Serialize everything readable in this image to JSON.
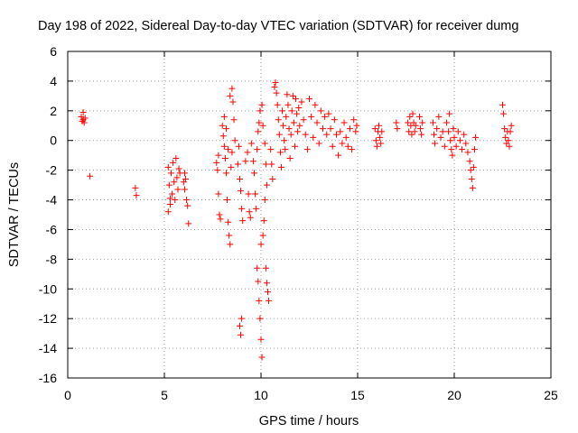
{
  "chart_data": {
    "type": "scatter",
    "title": "Day 198 of 2022, Sidereal Day-to-day VTEC variation (SDTVAR) for receiver dumg",
    "xlabel": "GPS time / hours",
    "ylabel": "SDTVAR / TECUs",
    "xlim": [
      0,
      25
    ],
    "ylim": [
      -16,
      6
    ],
    "xticks": [
      0,
      5,
      10,
      15,
      20,
      25
    ],
    "yticks": [
      -16,
      -14,
      -12,
      -10,
      -8,
      -6,
      -4,
      -2,
      0,
      2,
      4,
      6
    ],
    "grid": true,
    "marker": "+",
    "color": "#ff0000",
    "series": [
      {
        "name": "SDTVAR",
        "points": [
          [
            0.7,
            1.6
          ],
          [
            0.75,
            1.3
          ],
          [
            0.8,
            1.9
          ],
          [
            0.85,
            1.2
          ],
          [
            0.9,
            1.5
          ],
          [
            0.8,
            1.4
          ],
          [
            1.15,
            -2.4
          ],
          [
            3.5,
            -3.2
          ],
          [
            3.55,
            -3.7
          ],
          [
            5.2,
            -1.8
          ],
          [
            5.25,
            -3.0
          ],
          [
            5.3,
            -4.3
          ],
          [
            5.35,
            -2.2
          ],
          [
            5.4,
            -3.6
          ],
          [
            5.45,
            -1.5
          ],
          [
            5.5,
            -2.8
          ],
          [
            5.55,
            -4.0
          ],
          [
            5.6,
            -1.2
          ],
          [
            5.65,
            -2.5
          ],
          [
            5.7,
            -3.3
          ],
          [
            5.75,
            -1.9
          ],
          [
            5.8,
            -2.2
          ],
          [
            5.2,
            -4.8
          ],
          [
            5.3,
            -3.9
          ],
          [
            6.0,
            -2.8
          ],
          [
            6.05,
            -3.3
          ],
          [
            6.1,
            -2.6
          ],
          [
            6.15,
            -4.0
          ],
          [
            6.2,
            -4.4
          ],
          [
            6.25,
            -5.6
          ],
          [
            6.05,
            -2.2
          ],
          [
            7.7,
            -1.5
          ],
          [
            7.75,
            -2.0
          ],
          [
            7.8,
            -3.6
          ],
          [
            7.85,
            -5.0
          ],
          [
            7.9,
            -5.3
          ],
          [
            7.8,
            -1.0
          ],
          [
            8.0,
            1.0
          ],
          [
            8.05,
            0.3
          ],
          [
            8.1,
            -0.4
          ],
          [
            8.15,
            -1.2
          ],
          [
            8.2,
            -2.2
          ],
          [
            8.25,
            -4.0
          ],
          [
            8.3,
            -5.5
          ],
          [
            8.35,
            -6.4
          ],
          [
            8.4,
            -7.0
          ],
          [
            8.1,
            1.6
          ],
          [
            8.2,
            0.8
          ],
          [
            8.3,
            -0.6
          ],
          [
            8.45,
            -1.8
          ],
          [
            8.5,
            3.5
          ],
          [
            8.55,
            2.6
          ],
          [
            8.6,
            1.4
          ],
          [
            8.65,
            0.0
          ],
          [
            8.4,
            3.0
          ],
          [
            8.5,
            -0.8
          ],
          [
            8.8,
            -1.6
          ],
          [
            8.85,
            -0.4
          ],
          [
            8.9,
            -2.6
          ],
          [
            8.95,
            -3.4
          ],
          [
            9.0,
            -4.6
          ],
          [
            9.05,
            -5.4
          ],
          [
            8.9,
            -12.5
          ],
          [
            8.95,
            -13.1
          ],
          [
            9.0,
            -12.0
          ],
          [
            9.2,
            -1.4
          ],
          [
            9.3,
            -0.8
          ],
          [
            9.35,
            -3.6
          ],
          [
            9.4,
            -4.8
          ],
          [
            9.45,
            -5.2
          ],
          [
            9.5,
            -0.2
          ],
          [
            9.6,
            -1.4
          ],
          [
            9.65,
            -2.2
          ],
          [
            9.7,
            -3.6
          ],
          [
            9.75,
            -4.6
          ],
          [
            9.8,
            -8.6
          ],
          [
            9.85,
            -9.5
          ],
          [
            9.9,
            -10.8
          ],
          [
            9.95,
            -12.0
          ],
          [
            10.0,
            -13.4
          ],
          [
            10.05,
            -14.6
          ],
          [
            9.8,
            -0.6
          ],
          [
            9.85,
            0.6
          ],
          [
            9.9,
            1.2
          ],
          [
            9.95,
            2.0
          ],
          [
            10.0,
            -7.0
          ],
          [
            10.1,
            -6.4
          ],
          [
            10.15,
            -5.4
          ],
          [
            10.2,
            -4.0
          ],
          [
            10.25,
            -8.6
          ],
          [
            10.3,
            -9.6
          ],
          [
            10.35,
            -10.2
          ],
          [
            10.4,
            -10.8
          ],
          [
            10.05,
            2.4
          ],
          [
            10.1,
            1.0
          ],
          [
            10.2,
            -0.2
          ],
          [
            10.25,
            -1.6
          ],
          [
            10.3,
            -3.0
          ],
          [
            10.5,
            -0.6
          ],
          [
            10.55,
            -1.6
          ],
          [
            10.6,
            -2.6
          ],
          [
            10.7,
            3.6
          ],
          [
            10.75,
            3.9
          ],
          [
            10.8,
            3.2
          ],
          [
            10.85,
            2.4
          ],
          [
            10.9,
            1.4
          ],
          [
            10.95,
            0.4
          ],
          [
            11.0,
            -0.8
          ],
          [
            11.05,
            -1.8
          ],
          [
            11.1,
            2.0
          ],
          [
            11.15,
            1.0
          ],
          [
            11.2,
            0.0
          ],
          [
            11.25,
            -0.6
          ],
          [
            11.3,
            1.6
          ],
          [
            11.35,
            3.1
          ],
          [
            11.4,
            2.4
          ],
          [
            11.45,
            0.8
          ],
          [
            11.5,
            -1.2
          ],
          [
            11.55,
            0.4
          ],
          [
            11.6,
            2.0
          ],
          [
            11.65,
            3.0
          ],
          [
            11.7,
            1.2
          ],
          [
            11.75,
            -0.4
          ],
          [
            11.8,
            2.8
          ],
          [
            11.85,
            1.8
          ],
          [
            11.9,
            0.6
          ],
          [
            11.95,
            2.2
          ],
          [
            12.0,
            1.0
          ],
          [
            12.1,
            2.6
          ],
          [
            12.2,
            1.4
          ],
          [
            12.3,
            0.4
          ],
          [
            12.4,
            -0.6
          ],
          [
            12.5,
            2.8
          ],
          [
            12.6,
            1.6
          ],
          [
            12.7,
            0.2
          ],
          [
            12.8,
            2.4
          ],
          [
            12.9,
            1.2
          ],
          [
            13.0,
            -0.2
          ],
          [
            13.1,
            2.0
          ],
          [
            13.2,
            0.8
          ],
          [
            13.3,
            1.6
          ],
          [
            13.4,
            0.4
          ],
          [
            13.5,
            1.8
          ],
          [
            13.6,
            0.8
          ],
          [
            13.7,
            -0.4
          ],
          [
            13.8,
            1.4
          ],
          [
            13.9,
            0.4
          ],
          [
            14.0,
            -1.0
          ],
          [
            14.1,
            0.6
          ],
          [
            14.2,
            -0.2
          ],
          [
            14.3,
            1.2
          ],
          [
            14.4,
            0.2
          ],
          [
            14.5,
            -0.4
          ],
          [
            14.6,
            0.8
          ],
          [
            14.7,
            -0.6
          ],
          [
            14.8,
            1.4
          ],
          [
            14.9,
            0.6
          ],
          [
            14.95,
            1.0
          ],
          [
            15.9,
            0.8
          ],
          [
            15.95,
            0.0
          ],
          [
            16.0,
            -0.4
          ],
          [
            16.05,
            0.6
          ],
          [
            16.1,
            1.0
          ],
          [
            16.15,
            0.2
          ],
          [
            16.2,
            -0.2
          ],
          [
            16.25,
            0.6
          ],
          [
            17.0,
            1.2
          ],
          [
            17.05,
            0.8
          ],
          [
            17.6,
            1.2
          ],
          [
            17.65,
            0.6
          ],
          [
            17.7,
            1.6
          ],
          [
            17.75,
            1.0
          ],
          [
            17.8,
            0.4
          ],
          [
            17.85,
            1.8
          ],
          [
            17.9,
            1.2
          ],
          [
            17.95,
            0.6
          ],
          [
            18.0,
            1.0
          ],
          [
            18.2,
            1.6
          ],
          [
            18.25,
            0.8
          ],
          [
            18.3,
            0.4
          ],
          [
            18.35,
            1.2
          ],
          [
            18.9,
            1.2
          ],
          [
            18.95,
            0.4
          ],
          [
            19.0,
            -0.2
          ],
          [
            19.1,
            0.8
          ],
          [
            19.2,
            1.6
          ],
          [
            19.3,
            0.2
          ],
          [
            19.4,
            0.6
          ],
          [
            19.5,
            -0.4
          ],
          [
            19.6,
            1.2
          ],
          [
            19.7,
            0.6
          ],
          [
            19.75,
            1.8
          ],
          [
            19.8,
            0.0
          ],
          [
            19.85,
            -0.6
          ],
          [
            19.9,
            -1.0
          ],
          [
            19.95,
            0.8
          ],
          [
            20.0,
            0.2
          ],
          [
            20.1,
            -0.4
          ],
          [
            20.2,
            0.6
          ],
          [
            20.3,
            0.0
          ],
          [
            20.4,
            -0.6
          ],
          [
            20.5,
            0.4
          ],
          [
            20.6,
            -0.2
          ],
          [
            20.7,
            -0.8
          ],
          [
            20.8,
            -1.4
          ],
          [
            20.85,
            -2.0
          ],
          [
            20.9,
            -2.6
          ],
          [
            20.95,
            -3.2
          ],
          [
            21.0,
            -1.8
          ],
          [
            21.05,
            -0.6
          ],
          [
            21.1,
            0.2
          ],
          [
            22.5,
            2.4
          ],
          [
            22.55,
            1.8
          ],
          [
            22.6,
            0.8
          ],
          [
            22.65,
            0.2
          ],
          [
            22.7,
            -0.2
          ],
          [
            22.75,
            0.6
          ],
          [
            22.8,
            0.0
          ],
          [
            22.85,
            -0.4
          ],
          [
            22.9,
            0.6
          ],
          [
            22.95,
            1.0
          ]
        ]
      }
    ]
  }
}
